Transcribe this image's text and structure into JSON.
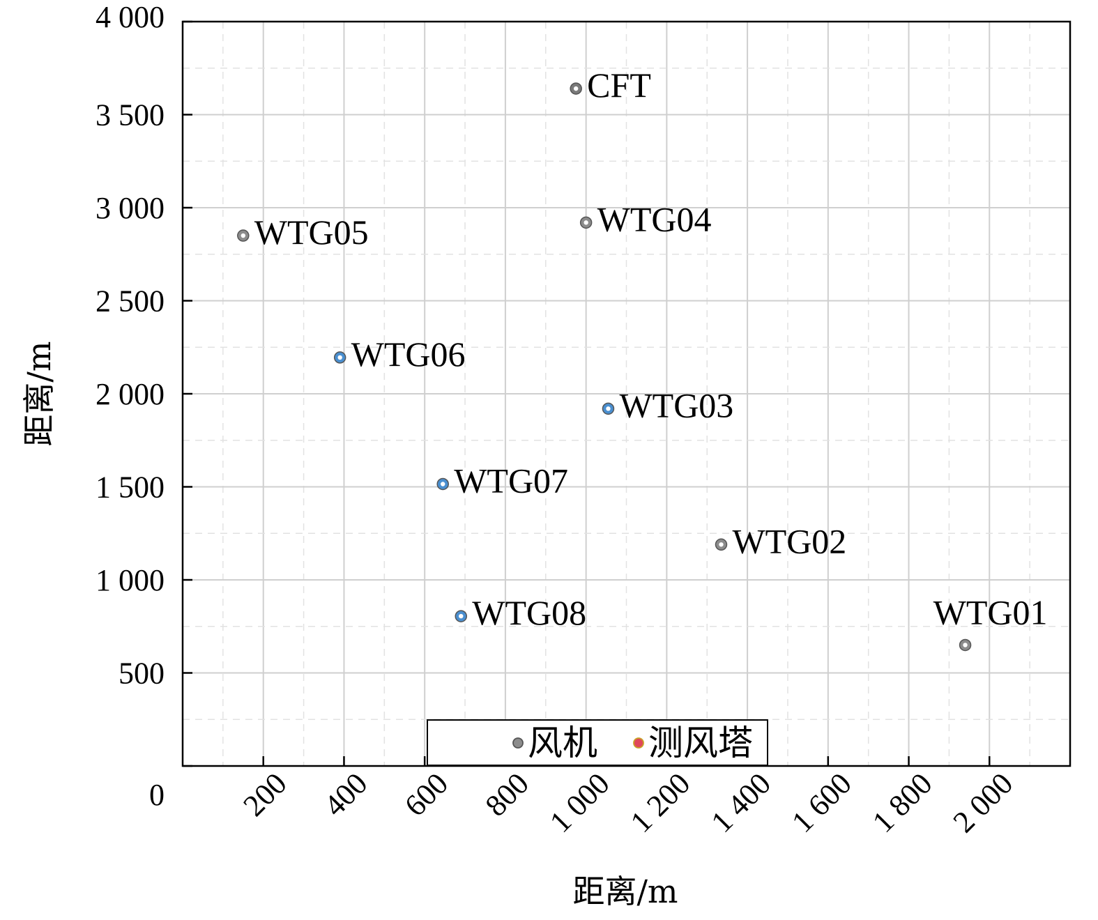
{
  "chart_data": {
    "type": "scatter",
    "xlabel": "距离/m",
    "ylabel": "距离/m",
    "xlim": [
      0,
      2200
    ],
    "ylim": [
      0,
      4000
    ],
    "x_ticks": [
      200,
      400,
      600,
      800,
      1000,
      1200,
      1400,
      1600,
      1800,
      2000
    ],
    "x_tick_labels": [
      "200",
      "400",
      "600",
      "800",
      "1 000",
      "1 200",
      "1 400",
      "1 600",
      "1 800",
      "2 000"
    ],
    "y_ticks": [
      0,
      500,
      1000,
      1500,
      2000,
      2500,
      3000,
      3500,
      4000
    ],
    "y_tick_labels": [
      "0",
      "500",
      "1 000",
      "1 500",
      "2 000",
      "2 500",
      "3 000",
      "3 500",
      "4 000"
    ],
    "grid": true,
    "legend": {
      "placement": "bottom-center",
      "entries": [
        {
          "label": "风机",
          "color": "#8c8c8c"
        },
        {
          "label": "测风塔",
          "color": "#e0475b"
        }
      ]
    },
    "points": [
      {
        "label": "CFT",
        "x": 975,
        "y": 3640,
        "color": "#7a7a7a",
        "label_side": "right"
      },
      {
        "label": "WTG05",
        "x": 150,
        "y": 2850,
        "color": "#8c8c8c",
        "label_side": "right"
      },
      {
        "label": "WTG04",
        "x": 1000,
        "y": 2920,
        "color": "#8c8c8c",
        "label_side": "right"
      },
      {
        "label": "WTG06",
        "x": 390,
        "y": 2195,
        "color": "#4a8fd0",
        "label_side": "right"
      },
      {
        "label": "WTG03",
        "x": 1055,
        "y": 1920,
        "color": "#4a8fd0",
        "label_side": "right"
      },
      {
        "label": "WTG07",
        "x": 645,
        "y": 1515,
        "color": "#4a8fd0",
        "label_side": "right"
      },
      {
        "label": "WTG02",
        "x": 1335,
        "y": 1190,
        "color": "#8c8c8c",
        "label_side": "right"
      },
      {
        "label": "WTG08",
        "x": 690,
        "y": 805,
        "color": "#4a8fd0",
        "label_side": "right"
      },
      {
        "label": "WTG01",
        "x": 1940,
        "y": 650,
        "color": "#8c8c8c",
        "label_side": "above"
      }
    ]
  }
}
